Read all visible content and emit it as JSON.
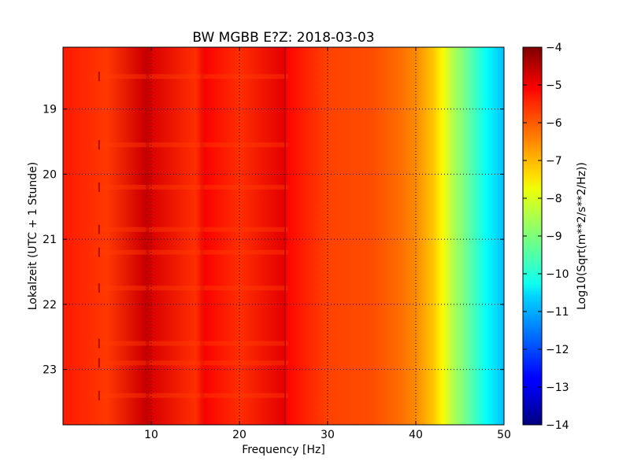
{
  "chart_data": {
    "type": "heatmap",
    "title": "BW MGBB E?Z: 2018-03-03",
    "xlabel": "Frequency [Hz]",
    "ylabel": "Lokalzeit (UTC + 1 Stunde)",
    "xlim": [
      0,
      50
    ],
    "ylim": [
      18.05,
      23.85
    ],
    "y_inverted": true,
    "x_ticks": [
      10,
      20,
      30,
      40,
      50
    ],
    "y_ticks": [
      19,
      20,
      21,
      22,
      23
    ],
    "grid": true,
    "colorbar": {
      "label": "Log10(Sqrt(m**2/s**2/Hz))",
      "range": [
        -14,
        -4
      ],
      "ticks": [
        -4,
        -5,
        -6,
        -7,
        -8,
        -9,
        -10,
        -11,
        -12,
        -13,
        -14
      ],
      "colormap": "jet"
    },
    "spectrum": {
      "frequencies": [
        0,
        5,
        9,
        9.5,
        10,
        15,
        16,
        20,
        25,
        25.5,
        30,
        35,
        38,
        40,
        42,
        43,
        44,
        46,
        48,
        50
      ],
      "values": [
        -5.5,
        -5.8,
        -4.8,
        -4.6,
        -4.9,
        -5.7,
        -5.2,
        -5.7,
        -5.0,
        -5.3,
        -5.9,
        -6.0,
        -6.3,
        -6.6,
        -7.2,
        -7.7,
        -8.4,
        -9.3,
        -10.2,
        -10.9
      ]
    },
    "time_bursts": [
      18.5,
      19.55,
      20.2,
      20.85,
      21.2,
      21.75,
      22.6,
      22.9,
      23.4
    ]
  }
}
